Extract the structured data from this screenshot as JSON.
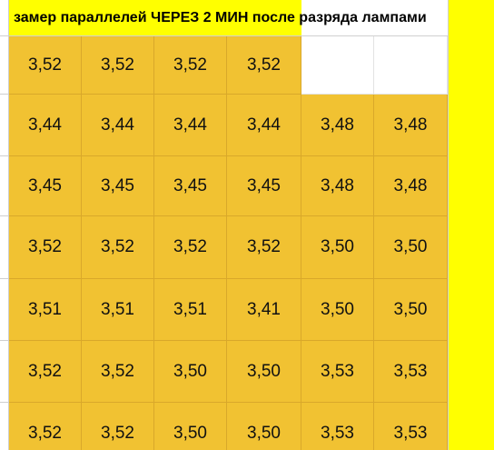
{
  "header": {
    "title": "замер параллелей ЧЕРЕЗ 2 МИН после разряда лампами"
  },
  "table": {
    "rows": [
      [
        "3,52",
        "3,52",
        "3,52",
        "3,52"
      ],
      [
        "3,44",
        "3,44",
        "3,44",
        "3,44",
        "3,48",
        "3,48"
      ],
      [
        "3,45",
        "3,45",
        "3,45",
        "3,45",
        "3,48",
        "3,48"
      ],
      [
        "3,52",
        "3,52",
        "3,52",
        "3,52",
        "3,50",
        "3,50"
      ],
      [
        "3,51",
        "3,51",
        "3,51",
        "3,41",
        "3,50",
        "3,50"
      ],
      [
        "3,52",
        "3,52",
        "3,50",
        "3,50",
        "3,53",
        "3,53"
      ],
      [
        "3,52",
        "3,52",
        "3,50",
        "3,50",
        "3,53",
        "3,53"
      ]
    ]
  }
}
